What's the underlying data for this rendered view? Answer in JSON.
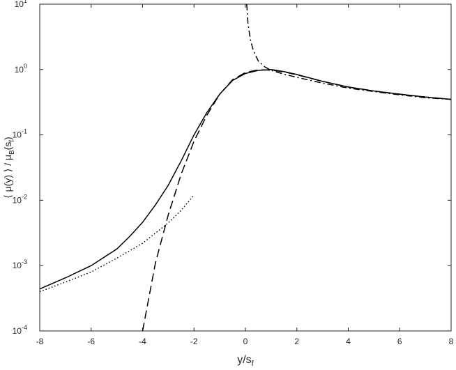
{
  "chart_data": {
    "type": "line",
    "xlabel": [
      "y/s",
      "f"
    ],
    "ylabel": [
      "⟨ μ(y) ⟩ / μ",
      "B",
      "(s",
      "f",
      ")"
    ],
    "xlim": [
      -8,
      8
    ],
    "xticks": [
      -8,
      -6,
      -4,
      -2,
      0,
      2,
      4,
      6,
      8
    ],
    "ylim": [
      0.0001,
      10
    ],
    "log_y": true,
    "yticks": [
      {
        "value": 0.0001,
        "label": "10",
        "exponent": "-4"
      },
      {
        "value": 0.001,
        "label": "10",
        "exponent": "-3"
      },
      {
        "value": 0.01,
        "label": "10",
        "exponent": "-2"
      },
      {
        "value": 0.1,
        "label": "10",
        "exponent": "-1"
      },
      {
        "value": 1,
        "label": "10",
        "exponent": "0"
      },
      {
        "value": 10,
        "label": "10",
        "exponent": "1"
      }
    ],
    "series": [
      {
        "color": "#000000",
        "dash": "solid",
        "x": [
          -8,
          -7,
          -6,
          -5,
          -4.5,
          -4,
          -3.5,
          -3,
          -2.5,
          -2,
          -1.5,
          -1,
          -0.5,
          0,
          0.5,
          1,
          1.5,
          2,
          3,
          4,
          5,
          6,
          7,
          8
        ],
        "values": [
          0.00044,
          0.00065,
          0.001,
          0.0018,
          0.0028,
          0.0046,
          0.0085,
          0.017,
          0.04,
          0.1,
          0.22,
          0.42,
          0.68,
          0.87,
          0.97,
          1.0,
          0.93,
          0.84,
          0.66,
          0.54,
          0.47,
          0.42,
          0.38,
          0.35
        ]
      },
      {
        "color": "#000000",
        "dash": "dashed",
        "x": [
          -4,
          -3.5,
          -3,
          -2.5,
          -2,
          -1.5,
          -1,
          -0.5,
          0,
          0.5,
          1,
          1.5,
          2,
          3,
          4,
          5,
          6,
          7,
          8
        ],
        "values": [
          0.0001,
          0.0011,
          0.006,
          0.025,
          0.08,
          0.2,
          0.42,
          0.7,
          0.9,
          0.99,
          0.98,
          0.92,
          0.83,
          0.66,
          0.54,
          0.47,
          0.42,
          0.38,
          0.35
        ]
      },
      {
        "color": "#000000",
        "dash": "dashdot",
        "x": [
          0.05,
          0.1,
          0.2,
          0.3,
          0.5,
          0.75,
          1,
          1.5,
          2,
          3,
          4,
          5,
          6,
          7,
          8
        ],
        "values": [
          10,
          5,
          2.8,
          2.0,
          1.35,
          1.1,
          0.97,
          0.85,
          0.76,
          0.62,
          0.52,
          0.46,
          0.41,
          0.37,
          0.35
        ]
      },
      {
        "color": "#000000",
        "dash": "dotted",
        "x": [
          -8,
          -7,
          -6,
          -5,
          -4,
          -3,
          -2.5,
          -2
        ],
        "values": [
          0.0004,
          0.00056,
          0.0008,
          0.0013,
          0.0022,
          0.0045,
          0.007,
          0.012
        ]
      }
    ]
  }
}
